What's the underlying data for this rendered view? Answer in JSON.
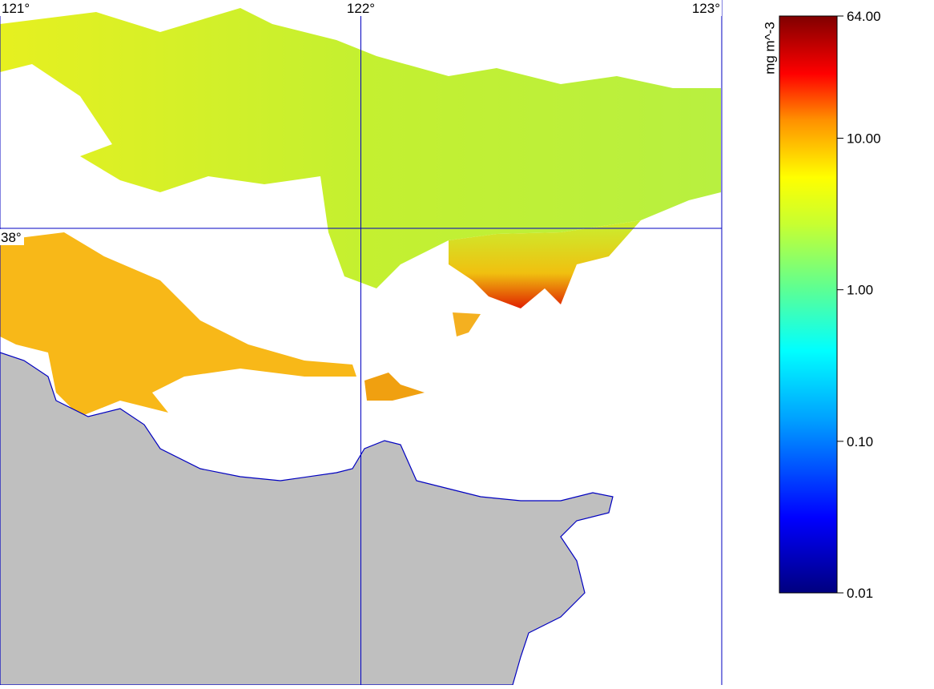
{
  "map": {
    "xlim": [
      121,
      123
    ],
    "ylim": [
      37.0,
      38.5
    ],
    "lon_ticks": [
      {
        "value": 121,
        "label": "121°"
      },
      {
        "value": 122,
        "label": "122°"
      },
      {
        "value": 123,
        "label": "123°"
      }
    ],
    "lat_ticks": [
      {
        "value": 38,
        "label": "38°"
      }
    ]
  },
  "colorbar": {
    "label": "mg m^-3",
    "scale": "log",
    "lim": [
      0.01,
      64
    ],
    "ticks": [
      {
        "value": 64,
        "label": "64.00"
      },
      {
        "value": 10,
        "label": "10.00"
      },
      {
        "value": 1,
        "label": "1.00"
      },
      {
        "value": 0.1,
        "label": "0.10"
      },
      {
        "value": 0.01,
        "label": "0.01"
      }
    ]
  }
}
